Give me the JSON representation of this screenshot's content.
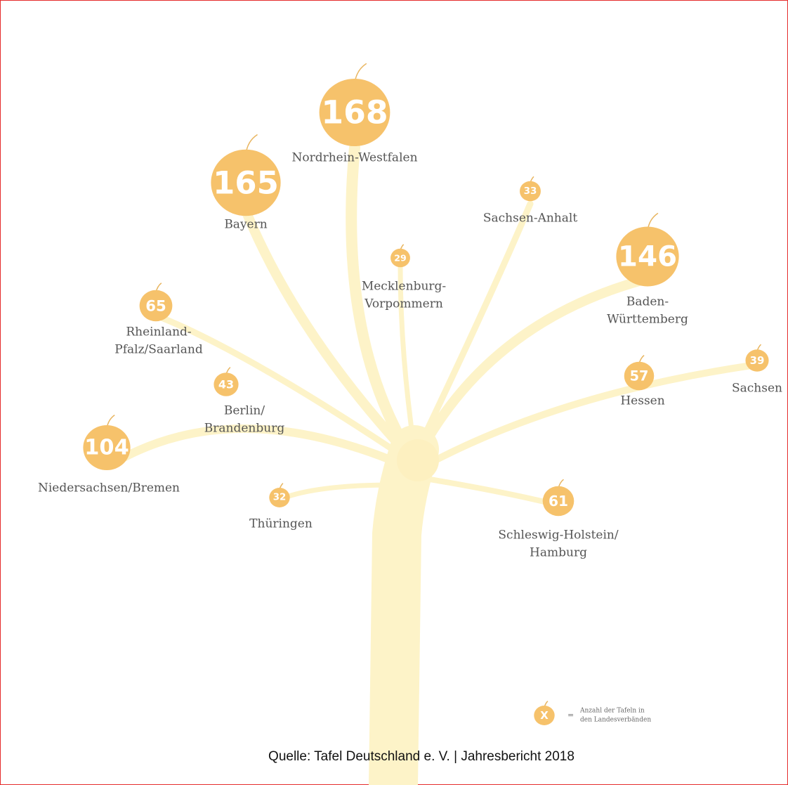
{
  "apples": [
    {
      "value": 168,
      "label": [
        "Nordrhein-Westfalen"
      ]
    },
    {
      "value": 165,
      "label": [
        "Bayern"
      ]
    },
    {
      "value": 33,
      "label": [
        "Sachsen-Anhalt"
      ]
    },
    {
      "value": 29,
      "label": [
        "Mecklenburg-",
        "Vorpommern"
      ]
    },
    {
      "value": 146,
      "label": [
        "Baden-",
        "Württemberg"
      ]
    },
    {
      "value": 65,
      "label": [
        "Rheinland-",
        "Pfalz/Saarland"
      ]
    },
    {
      "value": 43,
      "label": [
        "Berlin/",
        "Brandenburg"
      ]
    },
    {
      "value": 57,
      "label": [
        "Hessen"
      ]
    },
    {
      "value": 39,
      "label": [
        "Sachsen"
      ]
    },
    {
      "value": 104,
      "label": [
        "Niedersachsen/Bremen"
      ]
    },
    {
      "value": 32,
      "label": [
        "Thüringen"
      ]
    },
    {
      "value": 61,
      "label": [
        "Schleswig-Holstein/",
        "Hamburg"
      ]
    }
  ],
  "legend": {
    "symbol": "X",
    "text": [
      "Anzahl der Tafeln in",
      "den Landesverbänden"
    ]
  },
  "source": "Quelle: Tafel Deutschland e. V. | Jahresbericht 2018"
}
